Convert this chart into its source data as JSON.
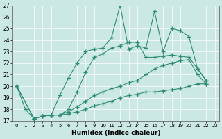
{
  "xlabel": "Humidex (Indice chaleur)",
  "xlim": [
    -0.5,
    23.5
  ],
  "ylim": [
    17,
    27
  ],
  "yticks": [
    17,
    18,
    19,
    20,
    21,
    22,
    23,
    24,
    25,
    26,
    27
  ],
  "xticks": [
    0,
    1,
    2,
    3,
    4,
    5,
    6,
    7,
    8,
    9,
    10,
    11,
    12,
    13,
    14,
    15,
    16,
    17,
    18,
    19,
    20,
    21,
    22,
    23
  ],
  "bg_color": "#cce8e4",
  "line_color": "#2e8b74",
  "lines": [
    {
      "x": [
        0,
        1,
        2,
        3,
        4,
        5,
        6,
        7,
        8,
        9,
        10,
        11,
        12,
        13,
        14,
        15,
        16,
        17,
        18,
        19,
        20,
        21,
        22
      ],
      "y": [
        20,
        18,
        17.2,
        17.4,
        17.5,
        19.2,
        20.7,
        22.0,
        23.0,
        23.2,
        23.3,
        24.2,
        27.0,
        23.2,
        23.5,
        23.3,
        26.5,
        23.0,
        25.0,
        24.8,
        24.3,
        21.5,
        20.5
      ]
    },
    {
      "x": [
        2,
        3,
        4,
        5,
        6,
        7,
        8,
        9,
        10,
        11,
        12,
        13,
        14,
        15,
        16,
        17,
        18,
        19,
        20,
        21,
        22
      ],
      "y": [
        17.2,
        17.4,
        17.5,
        17.5,
        18.0,
        19.5,
        21.2,
        22.5,
        22.8,
        23.3,
        23.5,
        23.8,
        23.8,
        22.5,
        22.5,
        22.6,
        22.7,
        22.6,
        22.5,
        21.5,
        20.5
      ]
    },
    {
      "x": [
        0,
        2,
        3,
        4,
        5,
        6,
        7,
        8,
        9,
        10,
        11,
        12,
        13,
        14,
        15,
        16,
        17,
        18,
        19,
        20,
        21,
        22
      ],
      "y": [
        20,
        17.2,
        17.4,
        17.5,
        17.5,
        17.8,
        18.2,
        18.7,
        19.2,
        19.5,
        19.8,
        20.0,
        20.3,
        20.5,
        21.0,
        21.5,
        21.8,
        22.0,
        22.2,
        22.3,
        21.0,
        20.2
      ]
    },
    {
      "x": [
        0,
        2,
        3,
        4,
        5,
        6,
        7,
        8,
        9,
        10,
        11,
        12,
        13,
        14,
        15,
        16,
        17,
        18,
        19,
        20,
        21,
        22
      ],
      "y": [
        20,
        17.2,
        17.4,
        17.5,
        17.5,
        17.6,
        17.8,
        18.0,
        18.3,
        18.5,
        18.7,
        19.0,
        19.2,
        19.3,
        19.5,
        19.5,
        19.6,
        19.7,
        19.8,
        20.0,
        20.2,
        20.2
      ]
    }
  ]
}
